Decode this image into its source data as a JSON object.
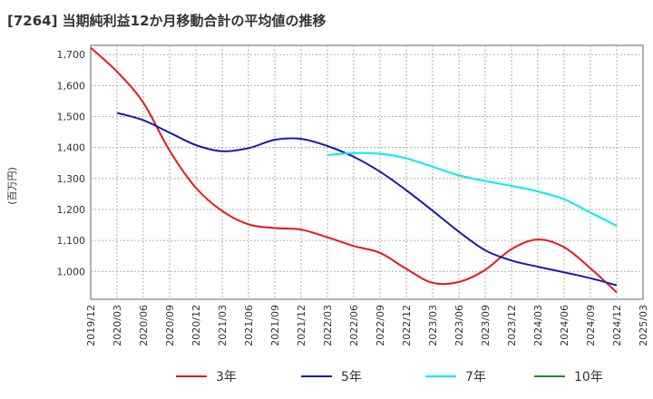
{
  "chart_data": {
    "type": "line",
    "title": "[7264]  当期純利益12か月移動合計の平均値の推移",
    "ylabel": "(百万円)",
    "xlabel": "",
    "ylim": [
      910,
      1730
    ],
    "yticks": [
      1000,
      1100,
      1200,
      1300,
      1400,
      1500,
      1600,
      1700
    ],
    "ytick_labels": [
      "1,000",
      "1,100",
      "1,200",
      "1,300",
      "1,400",
      "1,500",
      "1,600",
      "1,700"
    ],
    "x_labels": [
      "2019/12",
      "2020/03",
      "2020/06",
      "2020/09",
      "2020/12",
      "2021/03",
      "2021/06",
      "2021/09",
      "2021/12",
      "2022/03",
      "2022/06",
      "2022/09",
      "2022/12",
      "2023/03",
      "2023/06",
      "2023/09",
      "2023/12",
      "2024/03",
      "2024/06",
      "2024/09",
      "2024/12",
      "2025/03"
    ],
    "grid": true,
    "legend_position": "bottom",
    "series": [
      {
        "name": "3年",
        "color": "#e31a1c",
        "values": [
          1722,
          1645,
          1545,
          1390,
          1270,
          1195,
          1152,
          1140,
          1135,
          1110,
          1082,
          1060,
          1008,
          963,
          966,
          1005,
          1072,
          1103,
          1078,
          1010,
          932,
          null
        ]
      },
      {
        "name": "5年",
        "color": "#1a1aaa",
        "values": [
          null,
          1512,
          1488,
          1448,
          1408,
          1388,
          1398,
          1425,
          1428,
          1405,
          1370,
          1322,
          1262,
          1196,
          1128,
          1068,
          1035,
          1015,
          997,
          978,
          955,
          null
        ]
      },
      {
        "name": "7年",
        "color": "#00eeee",
        "values": [
          null,
          null,
          null,
          null,
          null,
          null,
          null,
          null,
          null,
          1376,
          1382,
          1380,
          1365,
          1338,
          1310,
          1292,
          1276,
          1258,
          1233,
          1190,
          1147,
          null
        ]
      },
      {
        "name": "10年",
        "color": "#228b22",
        "values": [
          null,
          null,
          null,
          null,
          null,
          null,
          null,
          null,
          null,
          null,
          null,
          null,
          null,
          null,
          null,
          null,
          null,
          null,
          null,
          null,
          null,
          null
        ]
      }
    ]
  }
}
